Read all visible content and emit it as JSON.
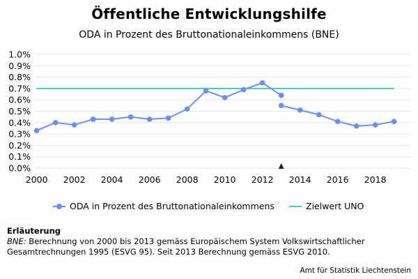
{
  "chart_data": {
    "type": "line",
    "title": "Öffentliche Entwicklungshilfe",
    "subtitle": "ODA in Prozent des Bruttonationaleinkommens (BNE)",
    "xlabel": "",
    "ylabel": "",
    "xlim": [
      1999.9,
      2019.9
    ],
    "ylim": [
      0,
      1.0
    ],
    "x_ticks": [
      "2000",
      "2002",
      "2004",
      "2006",
      "2008",
      "2010",
      "2012",
      "2014",
      "2016",
      "2018"
    ],
    "y_ticks": [
      "0.0%",
      "0.1%",
      "0.2%",
      "0.3%",
      "0.4%",
      "0.5%",
      "0.6%",
      "0.7%",
      "0.8%",
      "0.9%",
      "1.0%"
    ],
    "grid": "horizontal",
    "legend_position": "bottom",
    "series": [
      {
        "name": "ODA in Prozent des Bruttonationaleinkommens",
        "color": "#6b8ff2",
        "segments": [
          {
            "x": [
              2000,
              2001,
              2002,
              2003,
              2004,
              2005,
              2006,
              2007,
              2008,
              2009,
              2010,
              2011,
              2012,
              2013
            ],
            "y": [
              0.33,
              0.4,
              0.38,
              0.43,
              0.43,
              0.45,
              0.43,
              0.44,
              0.52,
              0.68,
              0.62,
              0.69,
              0.75,
              0.64
            ]
          },
          {
            "x": [
              2013,
              2014,
              2015,
              2016,
              2017,
              2018,
              2019
            ],
            "y": [
              0.55,
              0.51,
              0.47,
              0.41,
              0.37,
              0.38,
              0.41
            ]
          }
        ]
      },
      {
        "name": "Zielwert UNO",
        "color": "#3fcfa6",
        "x": [
          2000,
          2019
        ],
        "y": [
          0.7,
          0.7
        ]
      }
    ],
    "markers": [
      {
        "type": "break-marker",
        "symbol": "triangle",
        "x": 2013,
        "y": 0
      }
    ]
  },
  "notes": {
    "heading": "Erläuterung",
    "abbr": "BNE:",
    "text": " Berechnung von 2000 bis 2013 gemäss Europäischem System Volkswirtschaftlicher Gesamtrechnungen 1995 (ESVG 95). Seit 2013 Berechnung gemäss ESVG 2010."
  },
  "source": "Amt für Statistik Liechtenstein"
}
